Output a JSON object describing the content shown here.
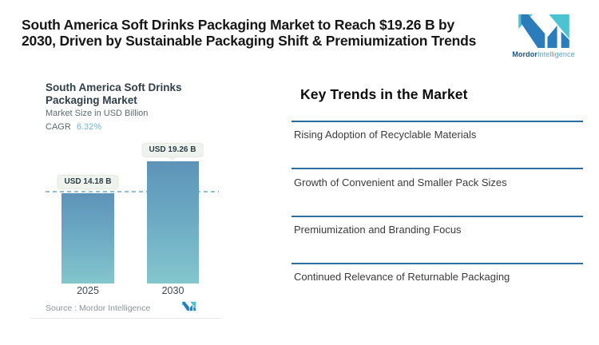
{
  "header": {
    "headline_line1": "South America Soft Drinks Packaging Market to Reach $19.26 B by",
    "headline_line2": "2030, Driven by Sustainable Packaging Shift & Premiumization Trends",
    "brand": {
      "name_bold": "Mordor",
      "name_light": "Intelligence"
    }
  },
  "chart_data": {
    "type": "bar",
    "title": "South America Soft Drinks Packaging Market",
    "subtitle": "Market Size in USD Billion",
    "cagr_label": "CAGR",
    "cagr_value": "6.32%",
    "categories": [
      "2025",
      "2030"
    ],
    "values": [
      14.18,
      19.26
    ],
    "value_labels": [
      "USD 14.18 B",
      "USD 19.26 B"
    ],
    "ylim": [
      0,
      19.26
    ],
    "grid": false,
    "legend": "none",
    "reference_line": "horizontal dashed line at 2025 value (14.18)",
    "source": "Source :  Mordor Intelligence"
  },
  "trends": {
    "heading": "Key Trends in the Market",
    "items": [
      "Rising Adoption of Recyclable Materials",
      "Growth of Convenient and Smaller Pack Sizes",
      "Premiumization and Branding Focus",
      "Continued Relevance of Returnable Packaging"
    ]
  },
  "colors": {
    "logo_blue": "#2b7cba",
    "logo_teal": "#4cc3d3",
    "bar_top": "#5d93b8",
    "bar_bottom": "#84c6cd",
    "trend_rule_blue": "#2c6e9f",
    "cagr_value_blue": "#74b4d8",
    "dashed_line_blue": "#8fc0da",
    "pill_bg": "#eef3ee"
  }
}
